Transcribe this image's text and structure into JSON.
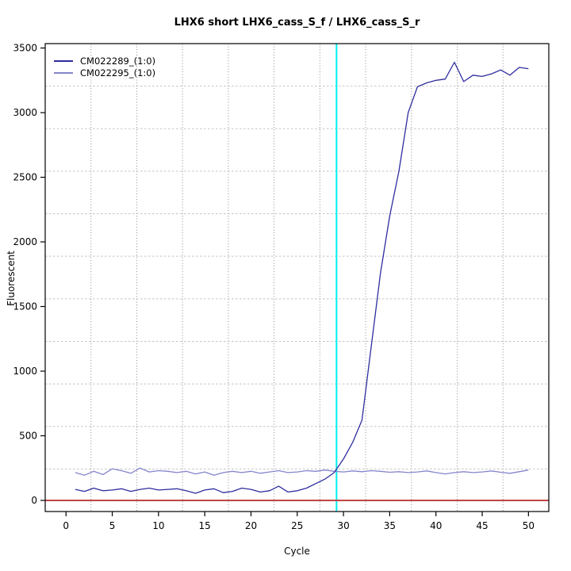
{
  "chart_data": {
    "type": "line",
    "title": "LHX6 short LHX6_cass_S_f / LHX6_cass_S_r",
    "xlabel": "Cycle",
    "ylabel": "Fluorescent",
    "x_ticks": [
      0,
      5,
      10,
      15,
      20,
      25,
      30,
      35,
      40,
      45,
      50
    ],
    "y_ticks": [
      0,
      500,
      1000,
      1500,
      2000,
      2500,
      3000,
      3500
    ],
    "xlim": [
      -2.25,
      52.2
    ],
    "ylim": [
      -86,
      3534
    ],
    "grid": {
      "divisions": 11,
      "vertical_color": "#8f8f8f",
      "horizontal_color": "#c3c3c3"
    },
    "legend_position": "top-left",
    "x": [
      1,
      2,
      3,
      4,
      5,
      6,
      7,
      8,
      9,
      10,
      11,
      12,
      13,
      14,
      15,
      16,
      17,
      18,
      19,
      20,
      21,
      22,
      23,
      24,
      25,
      26,
      27,
      28,
      29,
      30,
      31,
      32,
      33,
      34,
      35,
      36,
      37,
      38,
      39,
      40,
      41,
      42,
      43,
      44,
      45,
      46,
      47,
      48,
      49,
      50
    ],
    "series": [
      {
        "name": "CM022289_(1:0)",
        "color": "#2e2e9e",
        "values": [
          85,
          70,
          95,
          75,
          80,
          90,
          70,
          85,
          95,
          80,
          85,
          90,
          75,
          55,
          80,
          90,
          60,
          70,
          95,
          85,
          65,
          75,
          110,
          65,
          75,
          95,
          130,
          165,
          215,
          320,
          450,
          620,
          1190,
          1760,
          2200,
          2550,
          3000,
          3200,
          3230,
          3250,
          3260,
          3390,
          3240,
          3290,
          3280,
          3300,
          3330,
          3290,
          3350,
          3340
        ]
      },
      {
        "name": "CM022295_(1:0)",
        "color": "#8585cd",
        "values": [
          215,
          195,
          225,
          200,
          245,
          230,
          210,
          250,
          220,
          230,
          225,
          215,
          225,
          205,
          220,
          195,
          215,
          225,
          215,
          225,
          210,
          220,
          230,
          215,
          220,
          230,
          225,
          235,
          225,
          220,
          228,
          222,
          230,
          225,
          218,
          222,
          215,
          220,
          228,
          215,
          205,
          215,
          222,
          215,
          220,
          228,
          218,
          210,
          222,
          235
        ]
      }
    ],
    "baseline_line": {
      "orientation": "horizontal",
      "value": 0,
      "color": "#c04545"
    },
    "ct_line": {
      "orientation": "vertical",
      "cycle": 29.25,
      "color": "#00eeee"
    }
  }
}
